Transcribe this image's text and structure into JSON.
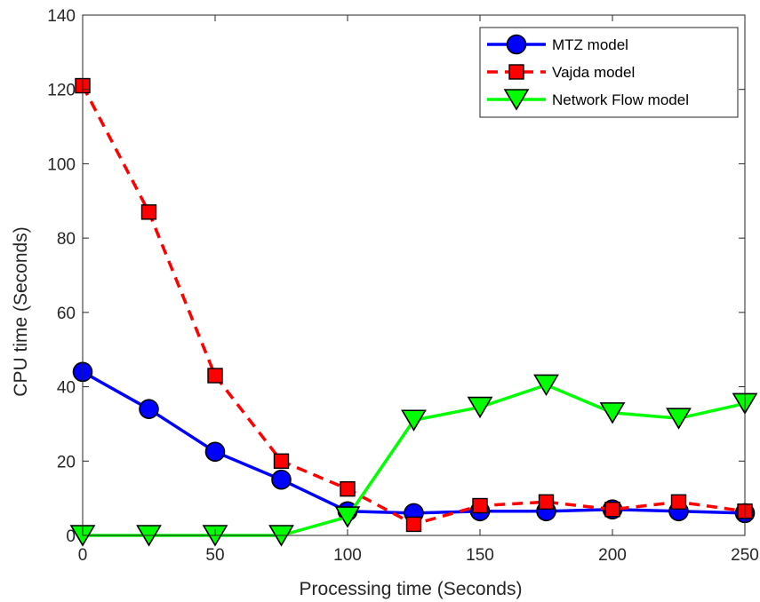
{
  "chart_data": {
    "type": "line",
    "xlabel": "Processing time (Seconds)",
    "ylabel": "CPU time (Seconds)",
    "xlim": [
      0,
      250
    ],
    "ylim": [
      0,
      140
    ],
    "xticks": [
      0,
      50,
      100,
      150,
      200,
      250
    ],
    "yticks": [
      0,
      20,
      40,
      60,
      80,
      100,
      120,
      140
    ],
    "grid": false,
    "legend_position": "top-right",
    "x": [
      0,
      25,
      50,
      75,
      100,
      125,
      150,
      175,
      200,
      225,
      250
    ],
    "series": [
      {
        "name": "MTZ model",
        "color": "#0000ff",
        "line_style": "solid",
        "marker": "circle",
        "values": [
          44,
          34,
          22.5,
          15,
          6.5,
          6,
          6.5,
          6.5,
          7,
          6.5,
          6
        ]
      },
      {
        "name": "Vajda model",
        "color": "#ff0000",
        "line_style": "dashed",
        "marker": "square",
        "values": [
          121,
          87,
          43,
          20,
          12.5,
          3,
          8,
          9,
          7,
          9,
          6.5
        ]
      },
      {
        "name": "Network Flow model",
        "color": "#00ff00",
        "line_style": "solid",
        "marker": "triangle-down",
        "values": [
          0,
          0,
          0,
          0,
          5,
          31,
          34.5,
          40.5,
          33,
          31.5,
          35.5
        ]
      }
    ]
  }
}
